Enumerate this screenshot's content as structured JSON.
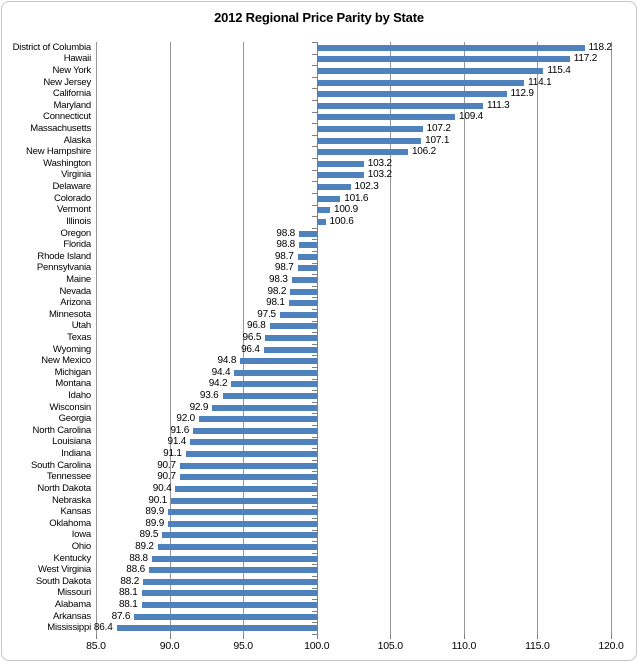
{
  "chart_data": {
    "type": "bar",
    "orientation": "horizontal",
    "title": "2012 Regional Price Parity by State",
    "categories": [
      "District of Columbia",
      "Hawaii",
      "New York",
      "New Jersey",
      "California",
      "Maryland",
      "Connecticut",
      "Massachusetts",
      "Alaska",
      "New Hampshire",
      "Washington",
      "Virginia",
      "Delaware",
      "Colorado",
      "Vermont",
      "Illinois",
      "Oregon",
      "Florida",
      "Rhode Island",
      "Pennsylvania",
      "Maine",
      "Nevada",
      "Arizona",
      "Minnesota",
      "Utah",
      "Texas",
      "Wyoming",
      "New Mexico",
      "Michigan",
      "Montana",
      "Idaho",
      "Wisconsin",
      "Georgia",
      "North Carolina",
      "Louisiana",
      "Indiana",
      "South Carolina",
      "Tennessee",
      "North Dakota",
      "Nebraska",
      "Kansas",
      "Oklahoma",
      "Iowa",
      "Ohio",
      "Kentucky",
      "West Virginia",
      "South Dakota",
      "Missouri",
      "Alabama",
      "Arkansas",
      "Mississippi"
    ],
    "values": [
      118.2,
      117.2,
      115.4,
      114.1,
      112.9,
      111.3,
      109.4,
      107.2,
      107.1,
      106.2,
      103.2,
      103.2,
      102.3,
      101.6,
      100.9,
      100.6,
      98.8,
      98.8,
      98.7,
      98.7,
      98.3,
      98.2,
      98.1,
      97.5,
      96.8,
      96.5,
      96.4,
      94.8,
      94.4,
      94.2,
      93.6,
      92.9,
      92.0,
      91.6,
      91.4,
      91.1,
      90.7,
      90.7,
      90.4,
      90.1,
      89.9,
      89.9,
      89.5,
      89.2,
      88.8,
      88.6,
      88.2,
      88.1,
      88.1,
      87.6,
      86.4
    ],
    "xlabel": "",
    "ylabel": "",
    "xlim": [
      85.0,
      120.0
    ],
    "x_ticks": [
      85,
      90,
      95,
      100,
      105,
      110,
      115,
      120
    ],
    "x_tick_labels": [
      "85.0",
      "90.0",
      "95.0",
      "100.0",
      "105.0",
      "110.0",
      "115.0",
      "120.0"
    ],
    "baseline": 100,
    "grid": true,
    "legend_position": "none",
    "data_labels": "outside-end, one decimal",
    "colors": {
      "bar": "#4F81BD",
      "gridline": "#969696",
      "axis": "#808080",
      "text": "#000000",
      "frame_border": "#C6C6C6",
      "background": "#FFFFFF"
    }
  }
}
